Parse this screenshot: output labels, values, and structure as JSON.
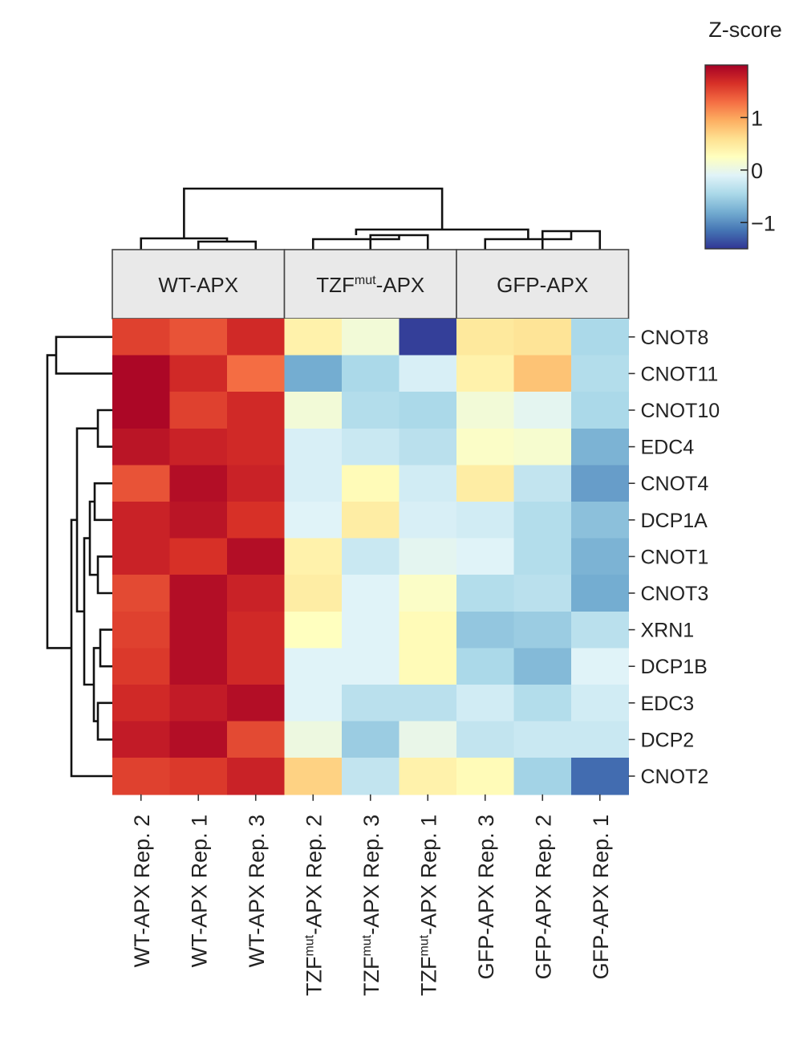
{
  "chart_data": {
    "type": "heatmap",
    "title": "",
    "colorbar": {
      "label": "Z-score",
      "ticks": [
        "1",
        "0",
        "−1"
      ],
      "tick_values": [
        1,
        0,
        -1
      ],
      "range": [
        -1.5,
        2
      ],
      "colormap": "RdYlBu_r"
    },
    "groups": [
      {
        "label": "WT-APX",
        "pre": "WT",
        "sup": "",
        "post": "-APX",
        "columns": 3
      },
      {
        "label": "TZFmut-APX",
        "pre": "TZF",
        "sup": "mut",
        "post": "-APX",
        "columns": 3
      },
      {
        "label": "GFP-APX",
        "pre": "GFP",
        "sup": "",
        "post": "-APX",
        "columns": 3
      }
    ],
    "columns": [
      {
        "label": "WT-APX Rep. 2",
        "pre": "WT",
        "sup": "",
        "post": "-APX Rep. 2"
      },
      {
        "label": "WT-APX Rep. 1",
        "pre": "WT",
        "sup": "",
        "post": "-APX Rep. 1"
      },
      {
        "label": "WT-APX Rep. 3",
        "pre": "WT",
        "sup": "",
        "post": "-APX Rep. 3"
      },
      {
        "label": "TZFmut-APX Rep. 2",
        "pre": "TZF",
        "sup": "mut",
        "post": "-APX Rep. 2"
      },
      {
        "label": "TZFmut-APX Rep. 3",
        "pre": "TZF",
        "sup": "mut",
        "post": "-APX Rep. 3"
      },
      {
        "label": "TZFmut-APX Rep. 1",
        "pre": "TZF",
        "sup": "mut",
        "post": "-APX Rep. 1"
      },
      {
        "label": "GFP-APX Rep. 3",
        "pre": "GFP",
        "sup": "",
        "post": "-APX Rep. 3"
      },
      {
        "label": "GFP-APX Rep. 2",
        "pre": "GFP",
        "sup": "",
        "post": "-APX Rep. 2"
      },
      {
        "label": "GFP-APX Rep. 1",
        "pre": "GFP",
        "sup": "",
        "post": "-APX Rep. 1"
      }
    ],
    "rows": [
      "CNOT8",
      "CNOT11",
      "CNOT10",
      "EDC4",
      "CNOT4",
      "DCP1A",
      "CNOT1",
      "CNOT3",
      "XRN1",
      "DCP1B",
      "EDC3",
      "DCP2",
      "CNOT2"
    ],
    "values": [
      [
        1.55,
        1.45,
        1.7,
        0.4,
        0.1,
        -1.45,
        0.5,
        0.55,
        -0.45
      ],
      [
        1.95,
        1.7,
        1.3,
        -0.8,
        -0.45,
        -0.15,
        0.4,
        0.8,
        -0.4
      ],
      [
        1.95,
        1.55,
        1.7,
        0.1,
        -0.4,
        -0.45,
        0.1,
        -0.05,
        -0.45
      ],
      [
        1.85,
        1.75,
        1.7,
        -0.15,
        -0.25,
        -0.35,
        0.2,
        0.15,
        -0.75
      ],
      [
        1.45,
        1.9,
        1.75,
        -0.15,
        0.3,
        -0.2,
        0.45,
        -0.3,
        -0.9
      ],
      [
        1.75,
        1.85,
        1.65,
        -0.1,
        0.45,
        -0.15,
        -0.2,
        -0.4,
        -0.65
      ],
      [
        1.75,
        1.65,
        1.9,
        0.4,
        -0.25,
        -0.05,
        -0.1,
        -0.4,
        -0.75
      ],
      [
        1.5,
        1.9,
        1.75,
        0.45,
        -0.1,
        0.2,
        -0.4,
        -0.35,
        -0.8
      ],
      [
        1.55,
        1.9,
        1.7,
        0.25,
        -0.1,
        0.3,
        -0.6,
        -0.55,
        -0.35
      ],
      [
        1.6,
        1.9,
        1.7,
        -0.1,
        -0.1,
        0.3,
        -0.45,
        -0.7,
        -0.1
      ],
      [
        1.7,
        1.8,
        1.9,
        -0.1,
        -0.35,
        -0.35,
        -0.2,
        -0.4,
        -0.2
      ],
      [
        1.8,
        1.9,
        1.5,
        0.05,
        -0.55,
        0.0,
        -0.3,
        -0.25,
        -0.25
      ],
      [
        1.55,
        1.6,
        1.75,
        0.7,
        -0.3,
        0.4,
        0.3,
        -0.5,
        -1.2
      ]
    ],
    "dendrograms": [
      "row",
      "column"
    ]
  }
}
